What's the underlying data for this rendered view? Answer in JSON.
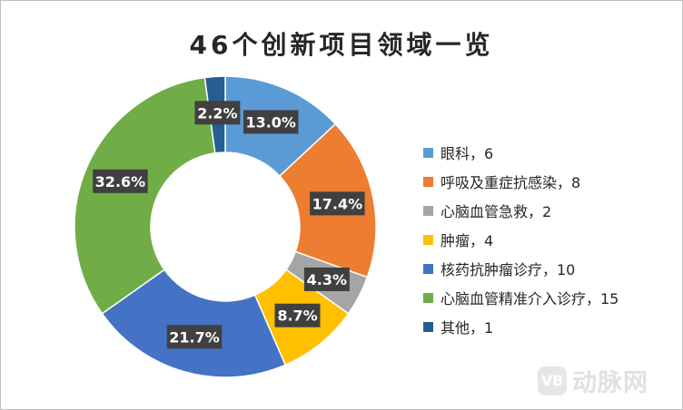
{
  "chart_data": {
    "type": "pie",
    "title": "46个创新项目领域一览",
    "categories": [
      "眼科",
      "呼吸及重症抗感染",
      "心脑血管急救",
      "肿瘤",
      "核药抗肿瘤诊疗",
      "心脑血管精准介入诊疗",
      "其他"
    ],
    "values": [
      6,
      8,
      2,
      4,
      10,
      15,
      1
    ],
    "percent_labels": [
      "13.0%",
      "17.4%",
      "4.3%",
      "8.7%",
      "21.7%",
      "32.6%",
      "2.2%"
    ],
    "legend_labels": [
      "眼科，6",
      "呼吸及重症抗感染，8",
      "心脑血管急救，2",
      "肿瘤，4",
      "核药抗肿瘤诊疗，10",
      "心脑血管精准介入诊疗，15",
      "其他，1"
    ],
    "colors": [
      "#5b9bd5",
      "#ed7d31",
      "#a5a5a5",
      "#ffc000",
      "#4472c4",
      "#70ad47",
      "#255e91"
    ],
    "legend_position": "right",
    "donut": true
  },
  "watermark": {
    "logo_text": "VB",
    "text": "动脉网"
  }
}
